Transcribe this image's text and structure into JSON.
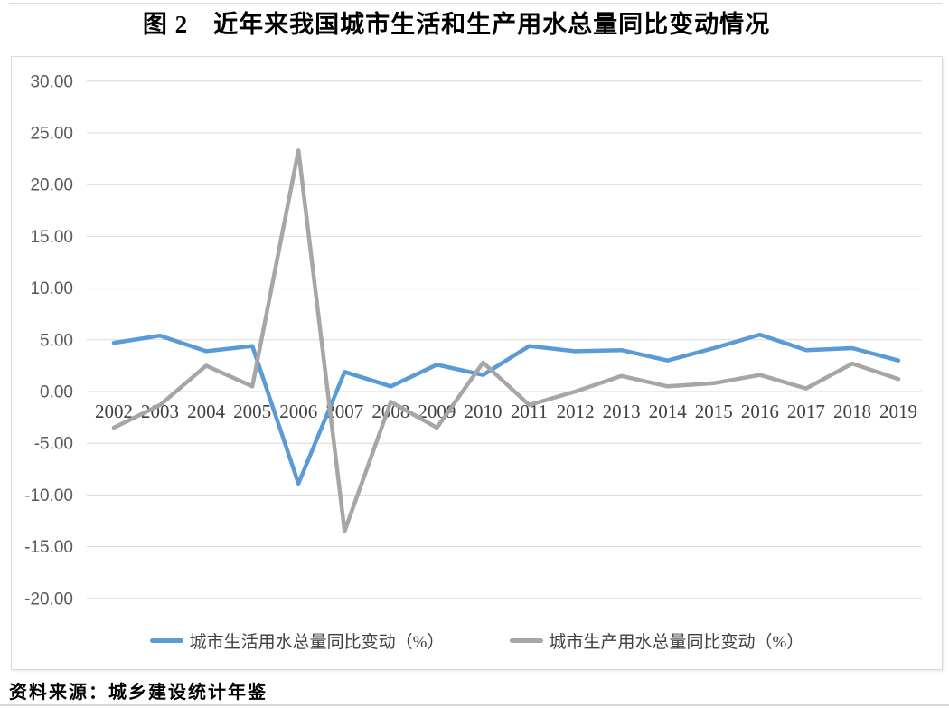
{
  "chart_data": {
    "type": "line",
    "title": "图 2　近年来我国城市生活和生产用水总量同比变动情况",
    "categories": [
      "2002",
      "2003",
      "2004",
      "2005",
      "2006",
      "2007",
      "2008",
      "2009",
      "2010",
      "2011",
      "2012",
      "2013",
      "2014",
      "2015",
      "2016",
      "2017",
      "2018",
      "2019"
    ],
    "series": [
      {
        "id": "domestic-water",
        "name": "城市生活用水总量同比变动（%）",
        "color": "#5B9BD5",
        "values": [
          4.7,
          5.4,
          3.9,
          4.4,
          -8.9,
          1.9,
          0.5,
          2.6,
          1.6,
          4.4,
          3.9,
          4.0,
          3.0,
          4.2,
          5.5,
          4.0,
          4.2,
          3.0
        ]
      },
      {
        "id": "production-water",
        "name": "城市生产用水总量同比变动（%）",
        "color": "#A6A6A6",
        "values": [
          -3.5,
          -1.3,
          2.5,
          0.5,
          23.3,
          -13.5,
          -1.0,
          -3.5,
          2.8,
          -1.3,
          0.0,
          1.5,
          0.5,
          0.8,
          1.6,
          0.3,
          2.7,
          1.2
        ]
      }
    ],
    "ylim": [
      -20,
      30
    ],
    "y_ticks": [
      30,
      25,
      20,
      15,
      10,
      5,
      0,
      -5,
      -10,
      -15,
      -20
    ],
    "y_tick_decimals": 2,
    "grid": true,
    "legend_position": "bottom",
    "source": "资料来源：城乡建设统计年鉴"
  },
  "colors": {
    "grid": "#d9d9d9",
    "y_label": "#595959",
    "x_label": "#404040",
    "rule": "#d9d9d9"
  }
}
